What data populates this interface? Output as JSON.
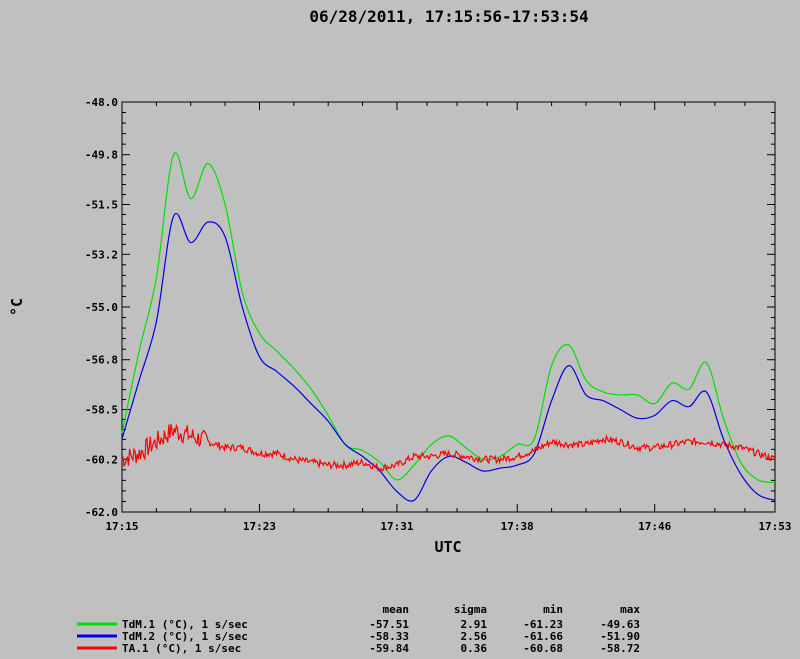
{
  "chart_data": {
    "type": "line",
    "title": "06/28/2011, 17:15:56-17:53:54",
    "xlabel": "UTC",
    "ylabel": "°C",
    "xlim": [
      "17:15",
      "17:53"
    ],
    "ylim": [
      -62.0,
      -48.0
    ],
    "y_ticks": [
      "-48.0",
      "-49.8",
      "-51.5",
      "-53.2",
      "-55.0",
      "-56.8",
      "-58.5",
      "-60.2",
      "-62.0"
    ],
    "x_ticks": [
      "17:15",
      "17:23",
      "17:31",
      "17:38",
      "17:46",
      "17:53"
    ],
    "grid": false,
    "series": [
      {
        "name": "TdM.1 (°C), 1 s/sec",
        "color": "#00e000",
        "x": [
          "17:15",
          "17:16",
          "17:17",
          "17:18",
          "17:19",
          "17:20",
          "17:21",
          "17:22",
          "17:23",
          "17:24",
          "17:25",
          "17:26",
          "17:27",
          "17:28",
          "17:29",
          "17:30",
          "17:31",
          "17:32",
          "17:33",
          "17:34",
          "17:35",
          "17:36",
          "17:37",
          "17:38",
          "17:39",
          "17:40",
          "17:41",
          "17:42",
          "17:43",
          "17:44",
          "17:45",
          "17:46",
          "17:47",
          "17:48",
          "17:49",
          "17:50",
          "17:51",
          "17:52",
          "17:53"
        ],
        "values": [
          -59.3,
          -56.5,
          -54.0,
          -49.8,
          -51.3,
          -50.1,
          -51.5,
          -54.5,
          -55.9,
          -56.5,
          -57.1,
          -57.8,
          -58.7,
          -59.7,
          -59.9,
          -60.3,
          -60.9,
          -60.4,
          -59.7,
          -59.4,
          -59.8,
          -60.2,
          -60.1,
          -59.7,
          -59.5,
          -57.0,
          -56.3,
          -57.5,
          -57.9,
          -58.0,
          -58.0,
          -58.3,
          -57.6,
          -57.8,
          -56.9,
          -58.8,
          -60.3,
          -60.9,
          -61.0
        ]
      },
      {
        "name": "TdM.2 (°C), 1 s/sec",
        "color": "#0000e0",
        "x": [
          "17:15",
          "17:16",
          "17:17",
          "17:18",
          "17:19",
          "17:20",
          "17:21",
          "17:22",
          "17:23",
          "17:24",
          "17:25",
          "17:26",
          "17:27",
          "17:28",
          "17:29",
          "17:30",
          "17:31",
          "17:32",
          "17:33",
          "17:34",
          "17:35",
          "17:36",
          "17:37",
          "17:38",
          "17:39",
          "17:40",
          "17:41",
          "17:42",
          "17:43",
          "17:44",
          "17:45",
          "17:46",
          "17:47",
          "17:48",
          "17:49",
          "17:50",
          "17:51",
          "17:52",
          "17:53"
        ],
        "values": [
          -59.5,
          -57.5,
          -55.5,
          -51.9,
          -52.8,
          -52.1,
          -52.6,
          -55.0,
          -56.7,
          -57.2,
          -57.7,
          -58.3,
          -58.9,
          -59.7,
          -60.1,
          -60.6,
          -61.3,
          -61.6,
          -60.6,
          -60.1,
          -60.3,
          -60.6,
          -60.5,
          -60.4,
          -60.0,
          -58.2,
          -57.0,
          -58.0,
          -58.2,
          -58.5,
          -58.8,
          -58.7,
          -58.2,
          -58.4,
          -57.9,
          -59.5,
          -60.7,
          -61.4,
          -61.6
        ]
      },
      {
        "name": "TA.1 (°C), 1 s/sec",
        "color": "#ff0000",
        "x": [
          "17:15",
          "17:16",
          "17:17",
          "17:18",
          "17:19",
          "17:20",
          "17:21",
          "17:22",
          "17:23",
          "17:24",
          "17:25",
          "17:26",
          "17:27",
          "17:28",
          "17:29",
          "17:30",
          "17:31",
          "17:32",
          "17:33",
          "17:34",
          "17:35",
          "17:36",
          "17:37",
          "17:38",
          "17:39",
          "17:40",
          "17:41",
          "17:42",
          "17:43",
          "17:44",
          "17:45",
          "17:46",
          "17:47",
          "17:48",
          "17:49",
          "17:50",
          "17:51",
          "17:52",
          "17:53"
        ],
        "values": [
          -60.2,
          -60.0,
          -59.6,
          -59.2,
          -59.4,
          -59.6,
          -59.8,
          -59.8,
          -60.0,
          -60.0,
          -60.2,
          -60.3,
          -60.4,
          -60.4,
          -60.3,
          -60.5,
          -60.4,
          -60.1,
          -60.1,
          -60.0,
          -60.1,
          -60.2,
          -60.2,
          -60.1,
          -59.9,
          -59.6,
          -59.7,
          -59.7,
          -59.5,
          -59.6,
          -59.8,
          -59.8,
          -59.7,
          -59.6,
          -59.6,
          -59.7,
          -59.8,
          -60.0,
          -60.2
        ]
      }
    ],
    "stats": {
      "headers": [
        "mean",
        "sigma",
        "min",
        "max"
      ],
      "rows": [
        [
          "-57.51",
          "2.91",
          "-61.23",
          "-49.63"
        ],
        [
          "-58.33",
          "2.56",
          "-61.66",
          "-51.90"
        ],
        [
          "-59.84",
          "0.36",
          "-60.68",
          "-58.72"
        ]
      ]
    }
  }
}
